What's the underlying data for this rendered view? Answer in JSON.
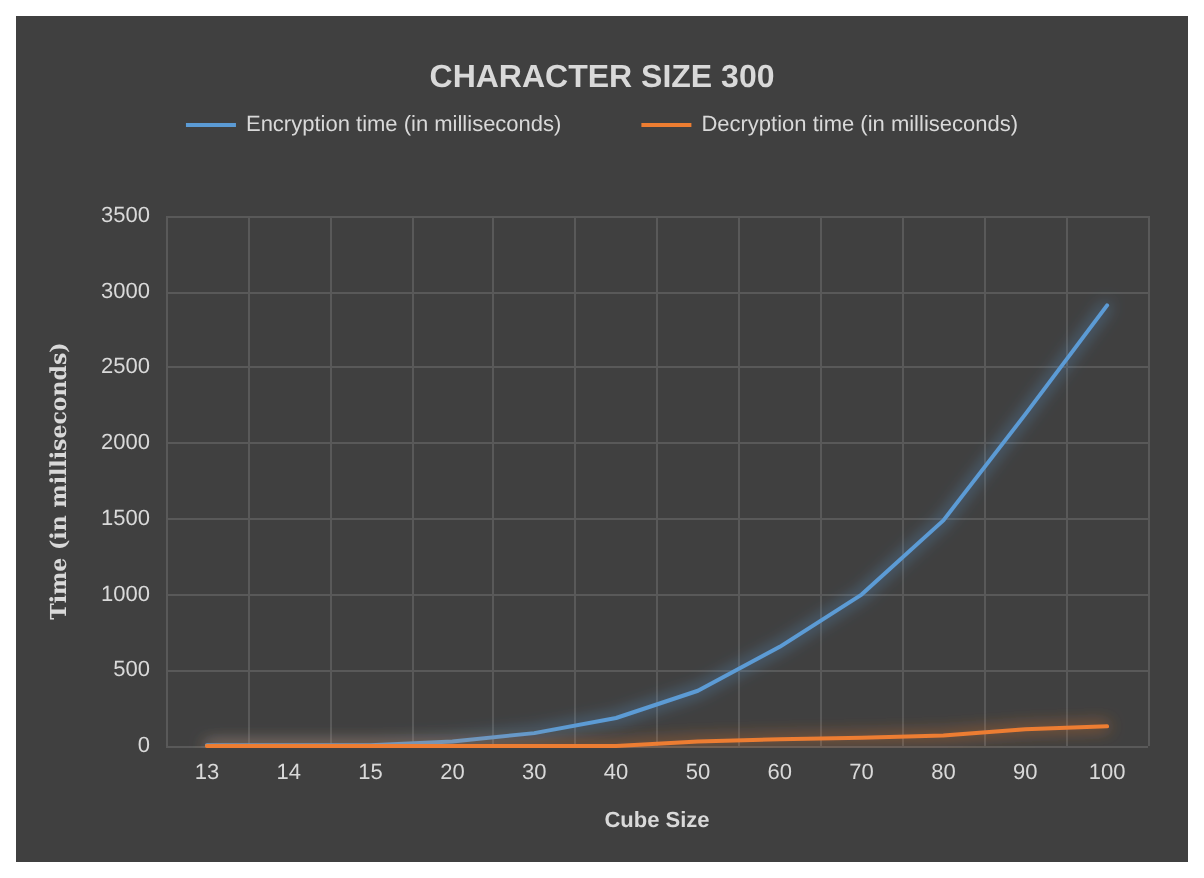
{
  "chart_data": {
    "type": "line",
    "title": "CHARACTER SIZE 300",
    "xlabel": "Cube Size",
    "ylabel": "Time (in milliseconds)",
    "categories": [
      "13",
      "14",
      "15",
      "20",
      "30",
      "40",
      "50",
      "60",
      "70",
      "80",
      "90",
      "100"
    ],
    "series": [
      {
        "name": "Encryption time (in milliseconds)",
        "color": "#5b9bd5",
        "values": [
          5,
          5,
          5,
          30,
          85,
          185,
          365,
          655,
          1000,
          1490,
          2190,
          2910
        ]
      },
      {
        "name": "Decryption time (in milliseconds)",
        "color": "#ed7d31",
        "values": [
          0,
          0,
          0,
          0,
          0,
          0,
          30,
          45,
          55,
          70,
          110,
          130
        ]
      }
    ],
    "ylim": [
      0,
      3500
    ],
    "yticks": [
      0,
      500,
      1000,
      1500,
      2000,
      2500,
      3000,
      3500
    ],
    "grid": true,
    "legend": "top",
    "marker": "none",
    "line_style": "solid"
  }
}
